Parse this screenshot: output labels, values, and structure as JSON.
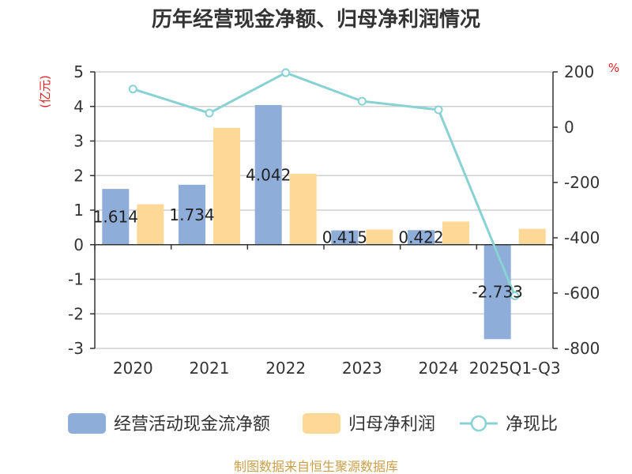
{
  "chart_data": {
    "type": "bar",
    "title": "历年经营现金净额、归母净利润情况",
    "categories": [
      "2020",
      "2021",
      "2022",
      "2023",
      "2024",
      "2025Q1-Q3"
    ],
    "series": [
      {
        "name": "经营活动现金流净额",
        "type": "bar",
        "axis": "left",
        "color": "#8eadd9",
        "values": [
          1.614,
          1.734,
          4.042,
          0.415,
          0.422,
          -2.733
        ],
        "labels": [
          "1.614",
          "1.734",
          "4.042",
          "0.415",
          "0.422",
          "-2.733"
        ]
      },
      {
        "name": "归母净利润",
        "type": "bar",
        "axis": "left",
        "color": "#fdd897",
        "values": [
          1.17,
          3.38,
          2.05,
          0.44,
          0.67,
          0.46
        ]
      },
      {
        "name": "净现比",
        "type": "line",
        "axis": "right",
        "color": "#88d2d3",
        "values": [
          138,
          51,
          197,
          94,
          63,
          -610
        ]
      }
    ],
    "left_axis": {
      "unit": "(亿元)",
      "ylim": [
        -3,
        5
      ],
      "ticks": [
        "5",
        "4",
        "3",
        "2",
        "1",
        "0",
        "-1",
        "-2",
        "-3"
      ]
    },
    "right_axis": {
      "unit": "%",
      "ylim": [
        -800,
        200
      ],
      "ticks": [
        "200",
        "0",
        "-200",
        "-400",
        "-600",
        "-800"
      ]
    },
    "grid": true,
    "legend_position": "bottom"
  },
  "source": "制图数据来自恒生聚源数据库"
}
